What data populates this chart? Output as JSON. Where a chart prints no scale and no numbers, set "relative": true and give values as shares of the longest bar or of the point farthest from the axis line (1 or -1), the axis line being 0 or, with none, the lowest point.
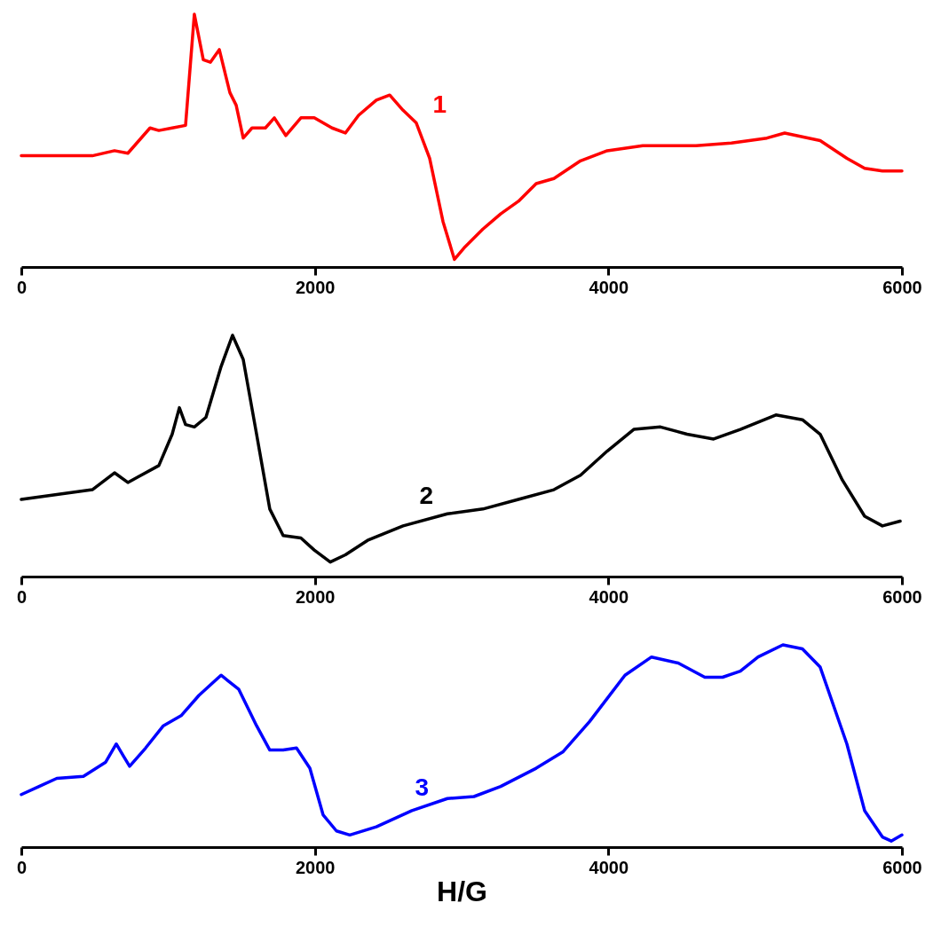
{
  "chart_data": [
    {
      "type": "line",
      "relative": true,
      "xlim": [
        0,
        6000
      ],
      "xticks": [
        0,
        2000,
        4000,
        6000
      ],
      "grid": false,
      "marker": "none",
      "line_style": "solid",
      "tick_labels": "x",
      "x": [
        0,
        484,
        635,
        726,
        877,
        937,
        1028,
        1119,
        1179,
        1240,
        1288,
        1349,
        1421,
        1464,
        1512,
        1572,
        1663,
        1724,
        1802,
        1905,
        1996,
        2117,
        2208,
        2298,
        2419,
        2510,
        2601,
        2691,
        2782,
        2873,
        2951,
        3024,
        3145,
        3266,
        3387,
        3508,
        3629,
        3810,
        3992,
        4234,
        4597,
        4838,
        5080,
        5201,
        5443,
        5625,
        5746,
        5867,
        6000
      ],
      "series": [
        {
          "name": "1",
          "color": "#ff0000",
          "values": [
            0.44,
            0.44,
            0.46,
            0.45,
            0.55,
            0.54,
            0.55,
            0.56,
            1,
            0.82,
            0.81,
            0.86,
            0.69,
            0.64,
            0.51,
            0.55,
            0.55,
            0.59,
            0.52,
            0.59,
            0.59,
            0.55,
            0.53,
            0.6,
            0.66,
            0.68,
            0.62,
            0.57,
            0.43,
            0.18,
            0.03,
            0.08,
            0.15,
            0.21,
            0.26,
            0.33,
            0.35,
            0.42,
            0.46,
            0.48,
            0.48,
            0.49,
            0.51,
            0.53,
            0.5,
            0.43,
            0.39,
            0.38,
            0.38
          ]
        }
      ]
    },
    {
      "type": "line",
      "relative": true,
      "xlim": [
        0,
        6000
      ],
      "xticks": [
        0,
        2000,
        4000,
        6000
      ],
      "grid": false,
      "marker": "none",
      "line_style": "solid",
      "tick_labels": "x",
      "x": [
        0,
        242,
        484,
        635,
        726,
        786,
        937,
        1028,
        1077,
        1119,
        1179,
        1258,
        1361,
        1439,
        1512,
        1603,
        1693,
        1784,
        1905,
        1996,
        2105,
        2208,
        2359,
        2601,
        2903,
        3145,
        3387,
        3629,
        3810,
        3992,
        4173,
        4355,
        4536,
        4717,
        4899,
        5141,
        5322,
        5443,
        5594,
        5746,
        5867,
        5988
      ],
      "series": [
        {
          "name": "2",
          "color": "#000000",
          "values": [
            0.32,
            0.34,
            0.36,
            0.43,
            0.39,
            0.41,
            0.46,
            0.59,
            0.7,
            0.63,
            0.62,
            0.66,
            0.87,
            1,
            0.9,
            0.59,
            0.28,
            0.17,
            0.16,
            0.11,
            0.06,
            0.09,
            0.15,
            0.21,
            0.26,
            0.28,
            0.32,
            0.36,
            0.42,
            0.52,
            0.61,
            0.62,
            0.59,
            0.57,
            0.61,
            0.67,
            0.65,
            0.59,
            0.4,
            0.25,
            0.21,
            0.23
          ]
        }
      ]
    },
    {
      "type": "line",
      "relative": true,
      "xlim": [
        0,
        6000
      ],
      "xticks": [
        0,
        2000,
        4000,
        6000
      ],
      "grid": false,
      "marker": "none",
      "line_style": "solid",
      "tick_labels": "x",
      "xlabel": "H/G",
      "x": [
        0,
        121,
        242,
        423,
        575,
        647,
        696,
        738,
        847,
        968,
        1089,
        1210,
        1361,
        1482,
        1603,
        1693,
        1784,
        1875,
        1966,
        2056,
        2147,
        2238,
        2419,
        2661,
        2903,
        3084,
        3266,
        3508,
        3689,
        3871,
        4113,
        4294,
        4476,
        4657,
        4778,
        4899,
        5020,
        5189,
        5322,
        5443,
        5625,
        5746,
        5867,
        5927,
        6000
      ],
      "series": [
        {
          "name": "3",
          "color": "#0000ff",
          "values": [
            0.26,
            0.3,
            0.34,
            0.35,
            0.42,
            0.51,
            0.45,
            0.4,
            0.49,
            0.6,
            0.65,
            0.75,
            0.85,
            0.78,
            0.6,
            0.48,
            0.48,
            0.49,
            0.39,
            0.16,
            0.08,
            0.06,
            0.1,
            0.18,
            0.24,
            0.25,
            0.3,
            0.39,
            0.47,
            0.62,
            0.85,
            0.94,
            0.91,
            0.84,
            0.84,
            0.87,
            0.94,
            1,
            0.98,
            0.89,
            0.51,
            0.18,
            0.05,
            0.03,
            0.06
          ]
        }
      ]
    }
  ]
}
